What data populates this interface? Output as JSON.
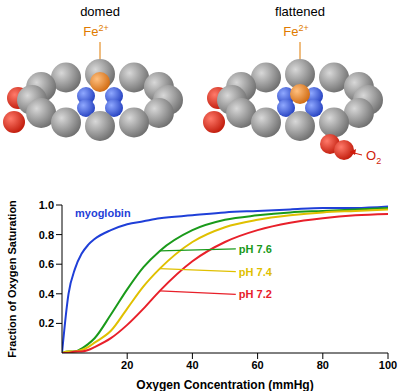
{
  "chart_data": {
    "type": "line",
    "xlabel": "Oxygen Concentration (mmHg)",
    "ylabel": "Fraction of Oxygen Saturation",
    "x": [
      0,
      2,
      4,
      6,
      8,
      10,
      15,
      20,
      25,
      30,
      40,
      50,
      60,
      70,
      80,
      90,
      100
    ],
    "series": [
      {
        "name": "myoglobin",
        "color": "#1f3fd8",
        "values": [
          0,
          0.4,
          0.57,
          0.67,
          0.73,
          0.77,
          0.83,
          0.87,
          0.89,
          0.91,
          0.93,
          0.95,
          0.96,
          0.97,
          0.98,
          0.98,
          0.99
        ]
      },
      {
        "name": "pH 7.6",
        "color": "#1a9a1a",
        "values": [
          0,
          0.01,
          0.01,
          0.03,
          0.06,
          0.1,
          0.26,
          0.43,
          0.58,
          0.69,
          0.83,
          0.9,
          0.93,
          0.95,
          0.96,
          0.97,
          0.98
        ]
      },
      {
        "name": "pH 7.4",
        "color": "#e0c000",
        "values": [
          0,
          0.01,
          0.01,
          0.02,
          0.04,
          0.07,
          0.15,
          0.3,
          0.45,
          0.57,
          0.75,
          0.85,
          0.9,
          0.93,
          0.95,
          0.96,
          0.97
        ]
      },
      {
        "name": "pH 7.2",
        "color": "#e8202a",
        "values": [
          0,
          0,
          0.01,
          0.01,
          0.02,
          0.04,
          0.1,
          0.19,
          0.3,
          0.42,
          0.62,
          0.75,
          0.83,
          0.88,
          0.91,
          0.93,
          0.94
        ]
      }
    ],
    "xlim": [
      0,
      100
    ],
    "ylim": [
      0,
      1
    ],
    "xticks": [
      20,
      40,
      60,
      80,
      100
    ],
    "yticks": [
      0.2,
      0.4,
      0.6,
      0.8,
      {
        "value": 1,
        "label": "1.0"
      }
    ],
    "grid": false
  },
  "illustration": {
    "panels": [
      {
        "title": "domed",
        "metal": {
          "text": "Fe",
          "sup": "2+"
        }
      },
      {
        "title": "flattened",
        "metal": {
          "text": "Fe",
          "sup": "2+"
        },
        "ligand": {
          "text": "O",
          "sub": "2"
        }
      }
    ]
  }
}
